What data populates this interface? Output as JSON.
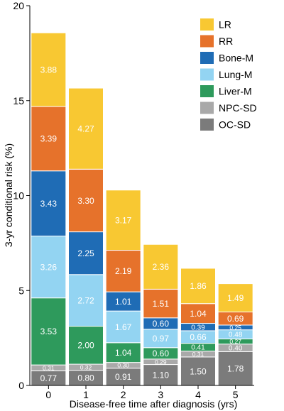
{
  "chart_data": {
    "type": "bar",
    "stacked": true,
    "title": "",
    "xlabel": "Disease-free time after diagnosis (yrs)",
    "ylabel": "3-yr conditional risk (%)",
    "ylim": [
      0,
      20
    ],
    "yticks": [
      "0",
      "5",
      "10",
      "15",
      "20"
    ],
    "grid": false,
    "legend_position": "top-right",
    "categories": [
      "0",
      "1",
      "2",
      "3",
      "4",
      "5"
    ],
    "series": [
      {
        "name": "OC-SD",
        "color": "#7b7b7b",
        "values": [
          0.77,
          0.8,
          0.91,
          1.1,
          1.5,
          1.78
        ],
        "labels": [
          "0.77",
          "0.80",
          "0.91",
          "1.10",
          "1.50",
          "1.78"
        ]
      },
      {
        "name": "NPC-SD",
        "color": "#a9a9a9",
        "values": [
          0.31,
          0.32,
          0.3,
          0.29,
          0.31,
          0.4
        ],
        "labels": [
          "0.31",
          "0.32",
          "0.30",
          "0.29",
          "0.31",
          "0.40"
        ]
      },
      {
        "name": "Liver-M",
        "color": "#2e9a5c",
        "values": [
          3.53,
          2.0,
          1.04,
          0.6,
          0.41,
          0.27
        ],
        "labels": [
          "3.53",
          "2.00",
          "1.04",
          "0.60",
          "0.41",
          "0.27"
        ]
      },
      {
        "name": "Lung-M",
        "color": "#93d4f2",
        "values": [
          3.26,
          2.72,
          1.67,
          0.97,
          0.66,
          0.48
        ],
        "labels": [
          "3.26",
          "2.72",
          "1.67",
          "0.97",
          "0.66",
          "0.48"
        ]
      },
      {
        "name": "Bone-M",
        "color": "#1f6cb5",
        "values": [
          3.43,
          2.25,
          1.01,
          0.6,
          0.39,
          0.25
        ],
        "labels": [
          "3.43",
          "2.25",
          "1.01",
          "0.60",
          "0.39",
          "0.25"
        ]
      },
      {
        "name": "RR",
        "color": "#e6722b",
        "values": [
          3.39,
          3.3,
          2.19,
          1.51,
          1.04,
          0.69
        ],
        "labels": [
          "3.39",
          "3.30",
          "2.19",
          "1.51",
          "1.04",
          "0.69"
        ]
      },
      {
        "name": "LR",
        "color": "#f8c832",
        "values": [
          3.88,
          4.27,
          3.17,
          2.36,
          1.86,
          1.49
        ],
        "labels": [
          "3.88",
          "4.27",
          "3.17",
          "2.36",
          "1.86",
          "1.49"
        ]
      }
    ],
    "legend_order": [
      "LR",
      "RR",
      "Bone-M",
      "Lung-M",
      "Liver-M",
      "NPC-SD",
      "OC-SD"
    ]
  }
}
